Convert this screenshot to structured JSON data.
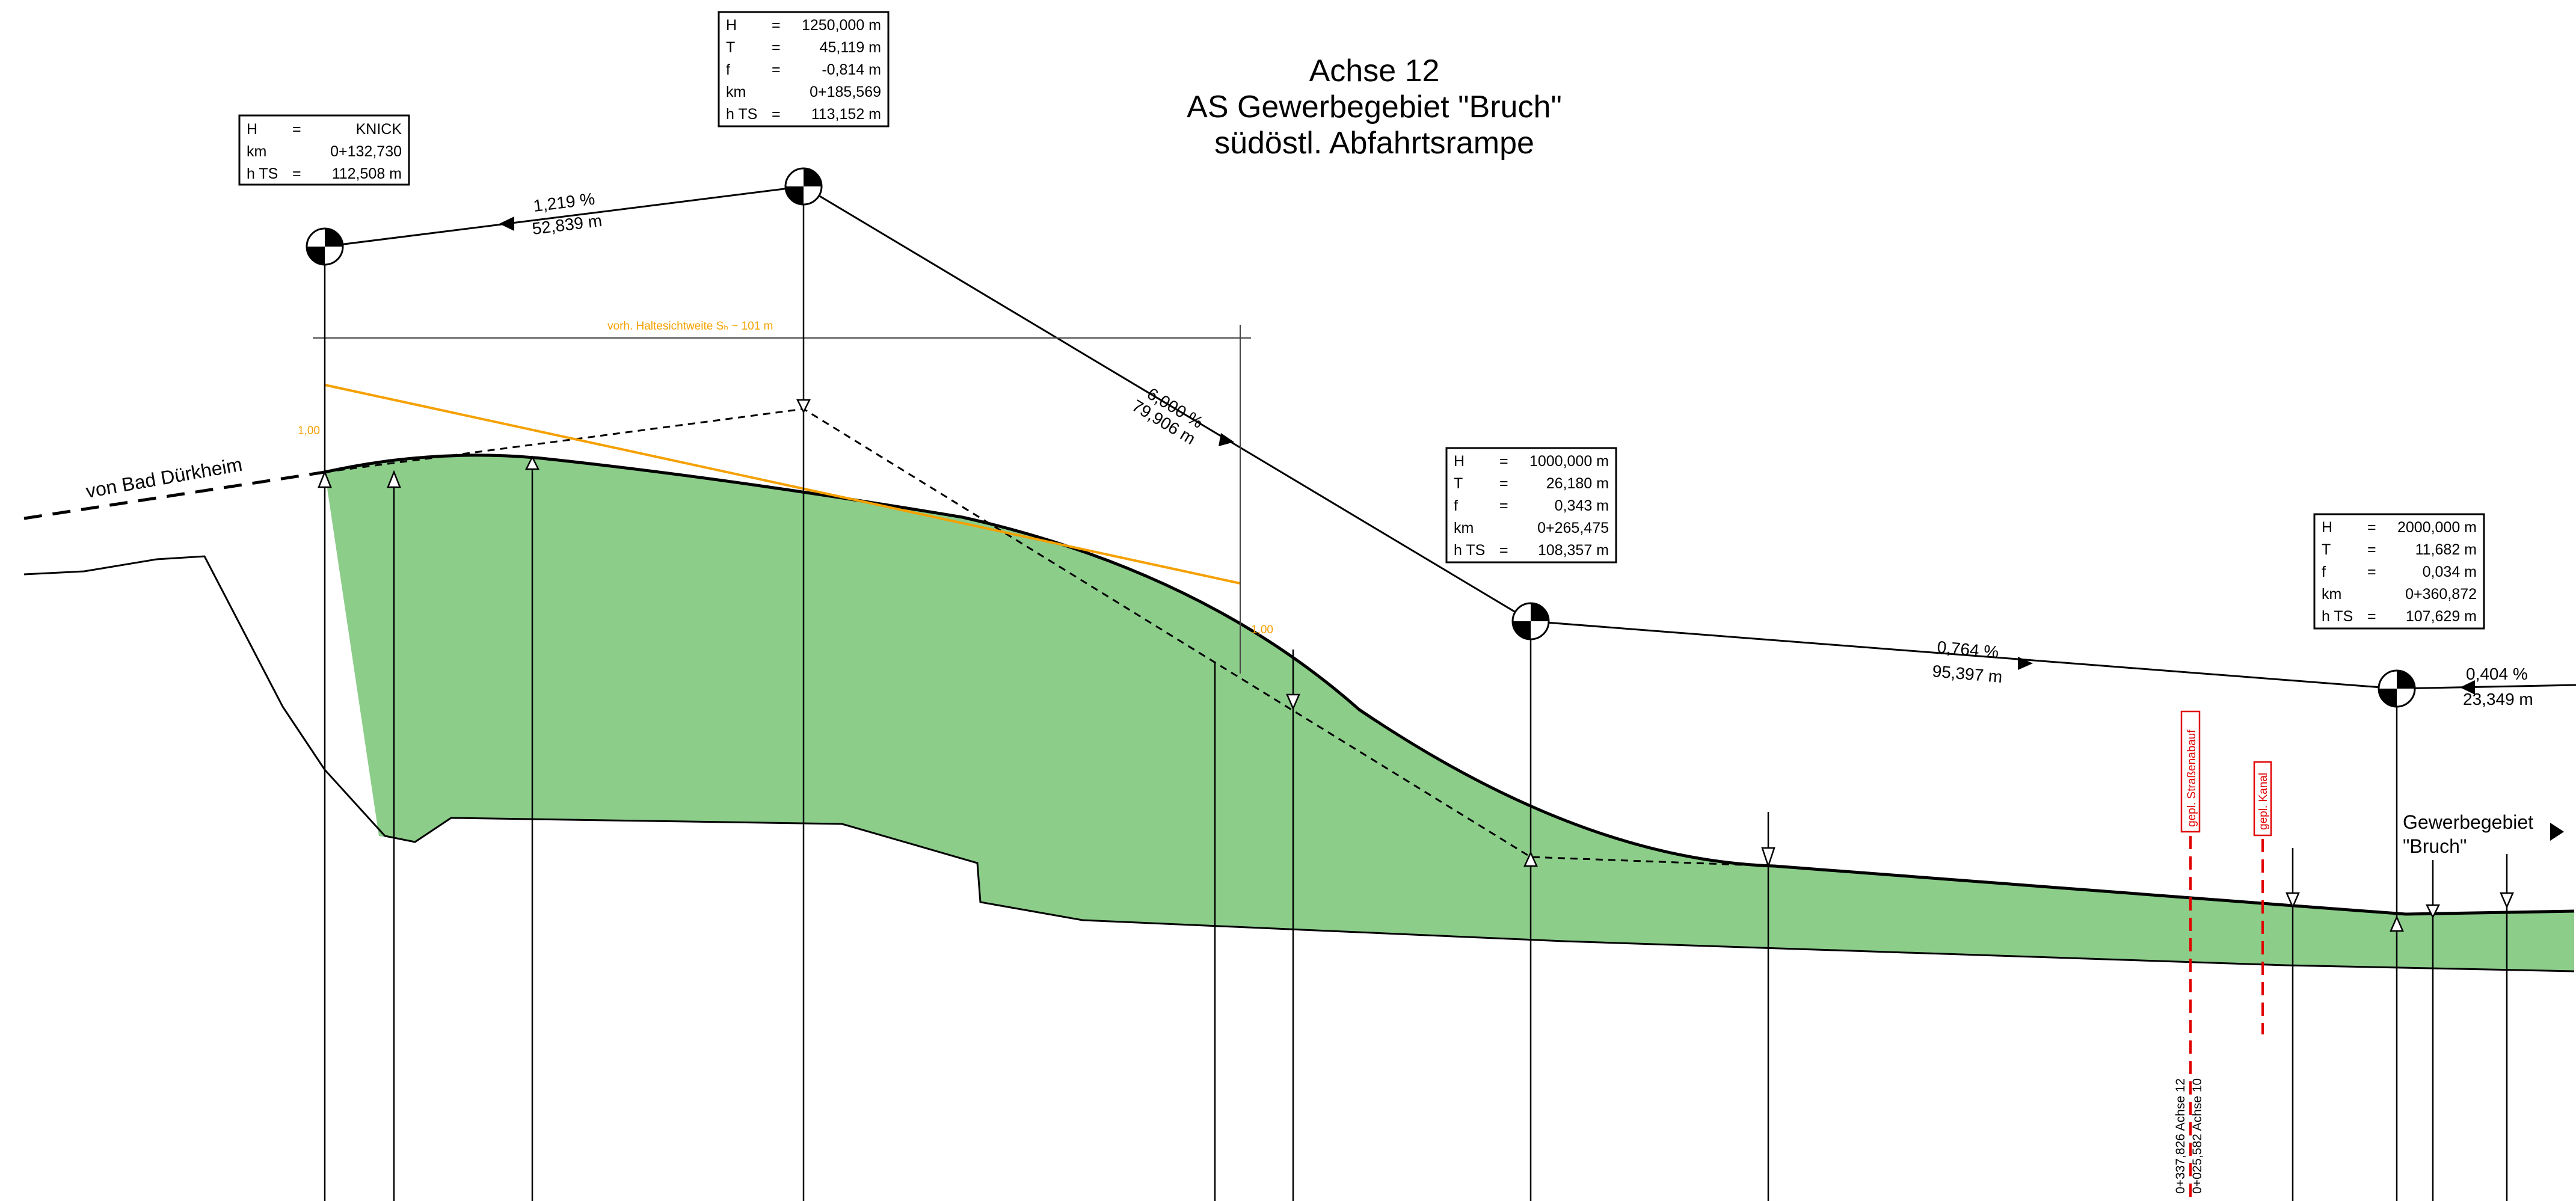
{
  "title": {
    "line1": "Achse 12",
    "line2": "AS Gewerbegebiet \"Bruch\"",
    "line3": "südöstl. Abfahrtsrampe"
  },
  "labels": {
    "left_direction": "von Bad Dürkheim",
    "right_direction_1": "Gewerbegebiet",
    "right_direction_2": "\"Bruch\"",
    "sight_distance": "vorh. Haltesichtweite Sₕ ~ 101 m",
    "sight_left": "1,00",
    "sight_right": "1,00",
    "planned_road": "gepl. Straßenabauf",
    "planned_canal": "gepl. Kanal",
    "crossing_1": "0+337,826 Achse 12",
    "crossing_2": "0+025,582 Achse 10"
  },
  "grades": [
    {
      "grade": "1,219 %",
      "length": "52,839 m"
    },
    {
      "grade": "6,000 %",
      "length": "79,906 m"
    },
    {
      "grade": "0,764 %",
      "length": "95,397 m"
    },
    {
      "grade": "0,404 %",
      "length": "23,349 m"
    }
  ],
  "info_boxes": [
    {
      "rows": [
        {
          "k": "H",
          "eq": "=",
          "v": "KNICK"
        },
        {
          "k": "km",
          "eq": "",
          "v": "0+132,730"
        },
        {
          "k": "h TS",
          "eq": "=",
          "v": "112,508 m"
        }
      ]
    },
    {
      "rows": [
        {
          "k": "H",
          "eq": "=",
          "v": "1250,000 m"
        },
        {
          "k": "T",
          "eq": "=",
          "v": "45,119 m"
        },
        {
          "k": "f",
          "eq": "=",
          "v": "-0,814 m"
        },
        {
          "k": "km",
          "eq": "",
          "v": "0+185,569"
        },
        {
          "k": "h TS",
          "eq": "=",
          "v": "113,152 m"
        }
      ]
    },
    {
      "rows": [
        {
          "k": "H",
          "eq": "=",
          "v": "1000,000 m"
        },
        {
          "k": "T",
          "eq": "=",
          "v": "26,180 m"
        },
        {
          "k": "f",
          "eq": "=",
          "v": "0,343 m"
        },
        {
          "k": "km",
          "eq": "",
          "v": "0+265,475"
        },
        {
          "k": "h TS",
          "eq": "=",
          "v": "108,357 m"
        }
      ]
    },
    {
      "rows": [
        {
          "k": "H",
          "eq": "=",
          "v": "2000,000 m"
        },
        {
          "k": "T",
          "eq": "=",
          "v": "11,682 m"
        },
        {
          "k": "f",
          "eq": "=",
          "v": "0,034 m"
        },
        {
          "k": "km",
          "eq": "",
          "v": "0+360,872"
        },
        {
          "k": "h TS",
          "eq": "=",
          "v": "107,629 m"
        }
      ]
    }
  ],
  "colors": {
    "fill": "#8ccd8a",
    "sight": "#f5a000",
    "planned": "#e00000",
    "line": "#000000"
  }
}
